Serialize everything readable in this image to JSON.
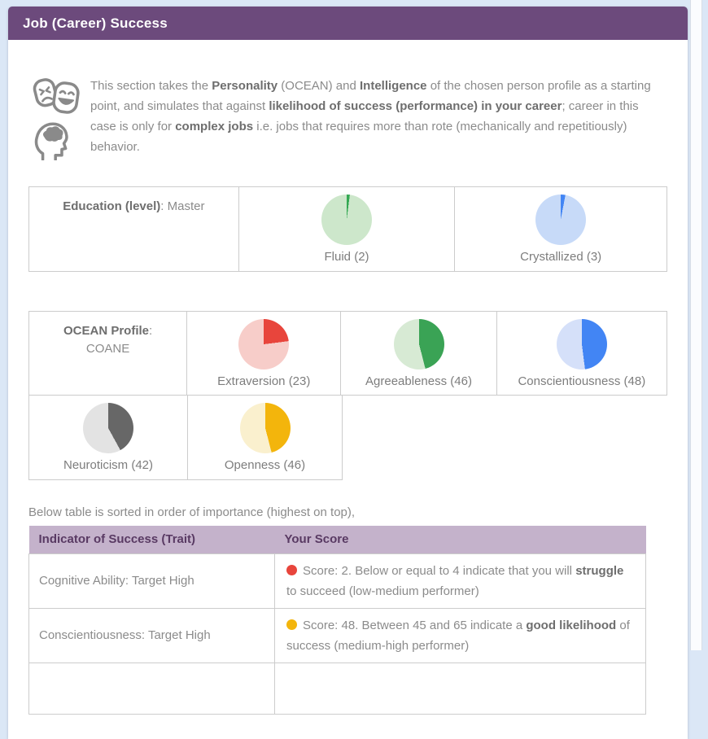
{
  "header": {
    "title": "Job (Career) Success"
  },
  "colors": {
    "header_purple": "#6c4a7c",
    "table_header_lavender": "#c4b2cb",
    "table_header_text": "#593a63",
    "page_background": "#dbe7f6",
    "status_red": "#e8453c",
    "status_yellow": "#f3b50c"
  },
  "icons": {
    "intro": [
      "theater-masks-icon",
      "head-brain-icon"
    ]
  },
  "intro": {
    "segments": [
      {
        "text": "This section takes the ",
        "bold": false
      },
      {
        "text": "Personality",
        "bold": true
      },
      {
        "text": " (OCEAN) and ",
        "bold": false
      },
      {
        "text": "Intelligence",
        "bold": true
      },
      {
        "text": " of the chosen person profile as a starting point, and simulates that against ",
        "bold": false
      },
      {
        "text": "likelihood of success (performance) in your career",
        "bold": true
      },
      {
        "text": "; career in this case is only for ",
        "bold": false
      },
      {
        "text": "complex jobs",
        "bold": true
      },
      {
        "text": " i.e. jobs that requires more than rote (mechanically and repetitiously) behavior.",
        "bold": false
      }
    ]
  },
  "education": {
    "label_segments": [
      {
        "text": "Education (level)",
        "bold": true
      },
      {
        "text": ": Master",
        "bold": false
      }
    ]
  },
  "ocean": {
    "label_segments": [
      {
        "text": "OCEAN Profile",
        "bold": true
      },
      {
        "text": ": COANE",
        "bold": false
      }
    ]
  },
  "pies": [
    {
      "id": "fluid",
      "name": "Fluid",
      "value": 2,
      "color": "#34a853",
      "light": "#cde7cb"
    },
    {
      "id": "crystallized",
      "name": "Crystallized",
      "value": 3,
      "color": "#4285f4",
      "light": "#c7daf8"
    },
    {
      "id": "extraversion",
      "name": "Extraversion",
      "value": 23,
      "color": "#e8453c",
      "light": "#f7cdc9"
    },
    {
      "id": "agreeableness",
      "name": "Agreeableness",
      "value": 46,
      "color": "#3aa355",
      "light": "#d7ead4"
    },
    {
      "id": "conscientiousness",
      "name": "Conscientiousness",
      "value": 48,
      "color": "#4285f4",
      "light": "#d5e0f9"
    },
    {
      "id": "neuroticism",
      "name": "Neuroticism",
      "value": 42,
      "color": "#676767",
      "light": "#e3e3e3"
    },
    {
      "id": "openness",
      "name": "Openness",
      "value": 46,
      "color": "#f3b50c",
      "light": "#faf0ce"
    }
  ],
  "chart_data": [
    {
      "type": "pie",
      "title": "Fluid (2)",
      "labels": [
        "Fluid",
        "remainder"
      ],
      "values": [
        2,
        98
      ]
    },
    {
      "type": "pie",
      "title": "Crystallized (3)",
      "labels": [
        "Crystallized",
        "remainder"
      ],
      "values": [
        3,
        97
      ]
    },
    {
      "type": "pie",
      "title": "Extraversion (23)",
      "labels": [
        "Extraversion",
        "remainder"
      ],
      "values": [
        23,
        77
      ]
    },
    {
      "type": "pie",
      "title": "Agreeableness (46)",
      "labels": [
        "Agreeableness",
        "remainder"
      ],
      "values": [
        46,
        54
      ]
    },
    {
      "type": "pie",
      "title": "Conscientiousness (48)",
      "labels": [
        "Conscientiousness",
        "remainder"
      ],
      "values": [
        48,
        52
      ]
    },
    {
      "type": "pie",
      "title": "Neuroticism (42)",
      "labels": [
        "Neuroticism",
        "remainder"
      ],
      "values": [
        42,
        58
      ]
    },
    {
      "type": "pie",
      "title": "Openness (46)",
      "labels": [
        "Openness",
        "remainder"
      ],
      "values": [
        46,
        54
      ]
    }
  ],
  "score_table": {
    "note": "Below table is sorted in order of importance (highest on top),",
    "headers": [
      "Indicator of Success (Trait)",
      "Your Score"
    ],
    "rows": [
      {
        "trait": "Cognitive Ability: Target High",
        "dot_color": "#e8453c",
        "segments": [
          {
            "text": "Score: 2. Below or equal to 4 indicate that you will ",
            "bold": false
          },
          {
            "text": "struggle",
            "bold": true
          },
          {
            "text": " to succeed (low-medium performer)",
            "bold": false
          }
        ]
      },
      {
        "trait": "Conscientiousness: Target High",
        "dot_color": "#f3b50c",
        "segments": [
          {
            "text": "Score: 48. Between 45 and 65 indicate a ",
            "bold": false
          },
          {
            "text": "good likelihood",
            "bold": true
          },
          {
            "text": " of success (medium-high performer)",
            "bold": false
          }
        ]
      }
    ]
  }
}
